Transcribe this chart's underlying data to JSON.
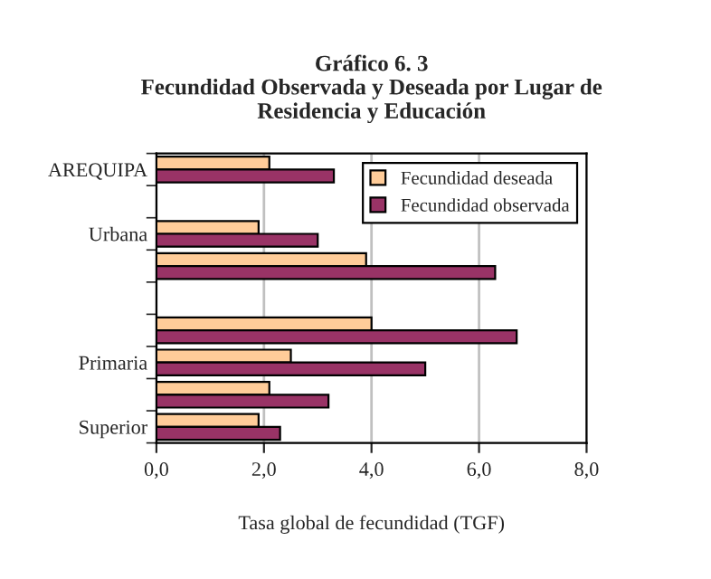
{
  "chart_data": {
    "type": "bar",
    "orientation": "horizontal",
    "title": "Gráfico 6. 3\nFecundidad Observada y Deseada por Lugar de\nResidencia y Educación",
    "xlabel": "Tasa global de fecundidad (TGF)",
    "categories": [
      "AREQUIPA",
      null,
      "Urbana",
      null,
      null,
      null,
      "Primaria",
      null,
      "Superior"
    ],
    "series": [
      {
        "name": "Fecundidad deseada",
        "color": "#ffcc99",
        "values": [
          2.1,
          null,
          1.9,
          3.9,
          null,
          4.0,
          2.5,
          2.1,
          1.9
        ]
      },
      {
        "name": "Fecundidad observada",
        "color": "#993366",
        "values": [
          3.3,
          null,
          3.0,
          6.3,
          null,
          6.7,
          5.0,
          3.2,
          2.3
        ]
      }
    ],
    "xlim": [
      0,
      8
    ],
    "xticks": [
      {
        "value": 0,
        "label": "0,0"
      },
      {
        "value": 2,
        "label": "2,0"
      },
      {
        "value": 4,
        "label": "4,0"
      },
      {
        "value": 6,
        "label": "6,0"
      },
      {
        "value": 8,
        "label": "8,0"
      }
    ],
    "grid": "x",
    "legend": "top right"
  }
}
